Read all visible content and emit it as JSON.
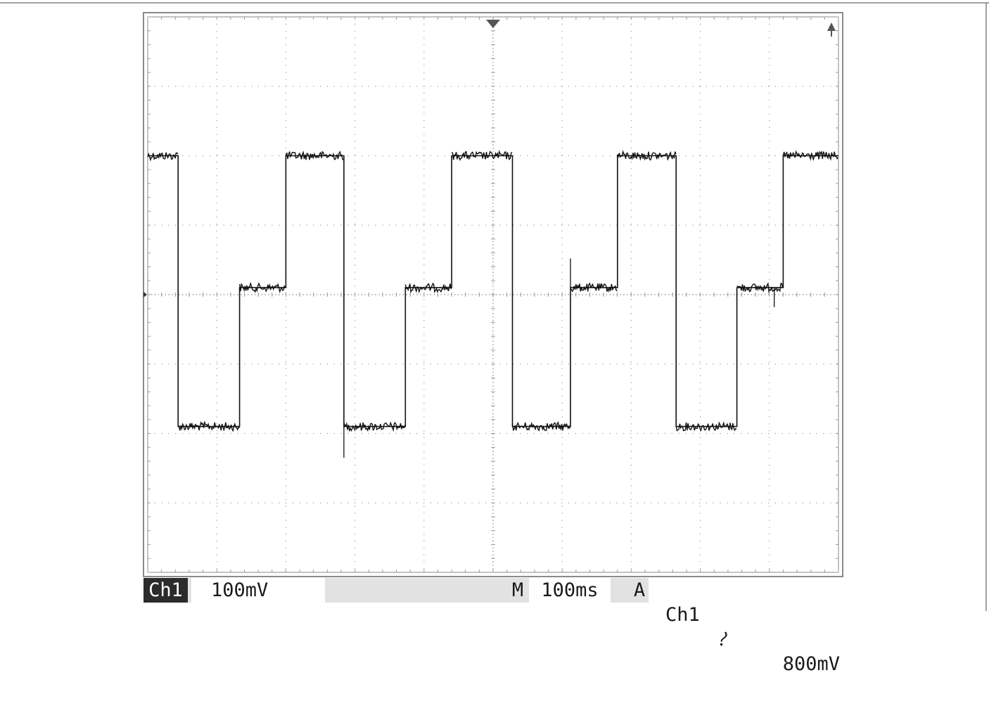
{
  "status_bar": {
    "channel": "Ch1",
    "volts_per_div": "100mV",
    "main_label": "M",
    "time_per_div": "100ms",
    "acq_label": "A",
    "trigger_source": "Ch1",
    "trigger_slope_icon": "falling-edge-icon",
    "trigger_slope_glyph": "⹔",
    "trigger_level": "800mV"
  },
  "colors": {
    "trace": "#111111",
    "grid": "#9a9a9a",
    "status_bar_bg": "#e2e2e2",
    "badge_bg": "#2b2b2b"
  },
  "chart_data": {
    "type": "line",
    "title": "",
    "xlabel": "",
    "ylabel": "",
    "grid": true,
    "x_divisions": 10,
    "y_divisions": 8,
    "xlim": [
      0,
      1000
    ],
    "x_unit": "ms",
    "ylim": [
      -400,
      400
    ],
    "y_unit": "mV",
    "series": [
      {
        "x": [
          0,
          44,
          44,
          133,
          133,
          200,
          200,
          284,
          284,
          373,
          373,
          440,
          440,
          528,
          528,
          612,
          612,
          680,
          680,
          765,
          765,
          853,
          853,
          920,
          920,
          1000
        ],
        "y": [
          200,
          200,
          -190,
          -190,
          10,
          10,
          200,
          200,
          -190,
          -190,
          10,
          10,
          200,
          200,
          -190,
          -190,
          10,
          10,
          200,
          200,
          -190,
          -190,
          10,
          10,
          200,
          200
        ]
      }
    ]
  }
}
